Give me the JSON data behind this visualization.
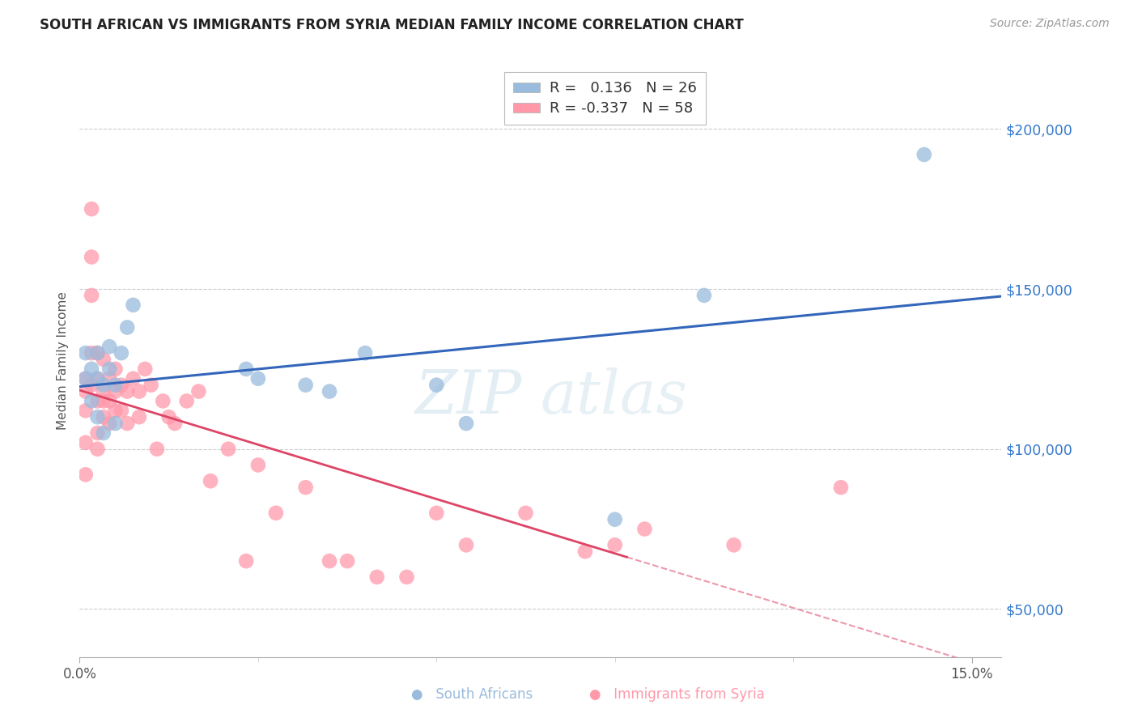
{
  "title": "SOUTH AFRICAN VS IMMIGRANTS FROM SYRIA MEDIAN FAMILY INCOME CORRELATION CHART",
  "source": "Source: ZipAtlas.com",
  "ylabel": "Median Family Income",
  "yticks": [
    50000,
    100000,
    150000,
    200000
  ],
  "ytick_labels": [
    "$50,000",
    "$100,000",
    "$150,000",
    "$200,000"
  ],
  "xlim": [
    0.0,
    0.155
  ],
  "ylim": [
    35000,
    220000
  ],
  "blue_color": "#99BBDD",
  "pink_color": "#FF99AA",
  "trendline_blue": "#3366BB",
  "trendline_pink": "#DD4466",
  "watermark_zip": "ZIP",
  "watermark_atlas": "atlas",
  "r_blue": "0.136",
  "n_blue": "26",
  "r_pink": "-0.337",
  "n_pink": "58",
  "south_african_x": [
    0.001,
    0.001,
    0.002,
    0.002,
    0.003,
    0.003,
    0.003,
    0.004,
    0.004,
    0.005,
    0.005,
    0.006,
    0.006,
    0.007,
    0.008,
    0.009,
    0.028,
    0.03,
    0.038,
    0.042,
    0.048,
    0.06,
    0.065,
    0.09,
    0.105,
    0.142
  ],
  "south_african_y": [
    122000,
    130000,
    125000,
    115000,
    130000,
    122000,
    110000,
    120000,
    105000,
    132000,
    125000,
    120000,
    108000,
    130000,
    138000,
    145000,
    125000,
    122000,
    120000,
    118000,
    130000,
    120000,
    108000,
    78000,
    148000,
    192000
  ],
  "syria_x": [
    0.001,
    0.001,
    0.001,
    0.001,
    0.002,
    0.002,
    0.002,
    0.002,
    0.003,
    0.003,
    0.003,
    0.003,
    0.004,
    0.004,
    0.004,
    0.005,
    0.005,
    0.005,
    0.006,
    0.006,
    0.006,
    0.007,
    0.007,
    0.008,
    0.008,
    0.009,
    0.01,
    0.01,
    0.011,
    0.012,
    0.013,
    0.014,
    0.015,
    0.016,
    0.018,
    0.02,
    0.022,
    0.025,
    0.028,
    0.03,
    0.033,
    0.038,
    0.042,
    0.045,
    0.05,
    0.055,
    0.06,
    0.065,
    0.075,
    0.085,
    0.09,
    0.095,
    0.11,
    0.128,
    0.001,
    0.002,
    0.003,
    0.004
  ],
  "syria_y": [
    118000,
    112000,
    102000,
    92000,
    175000,
    160000,
    148000,
    120000,
    130000,
    122000,
    115000,
    105000,
    128000,
    118000,
    110000,
    122000,
    115000,
    108000,
    125000,
    118000,
    112000,
    120000,
    112000,
    118000,
    108000,
    122000,
    118000,
    110000,
    125000,
    120000,
    100000,
    115000,
    110000,
    108000,
    115000,
    118000,
    90000,
    100000,
    65000,
    95000,
    80000,
    88000,
    65000,
    65000,
    60000,
    60000,
    80000,
    70000,
    80000,
    68000,
    70000,
    75000,
    70000,
    88000,
    122000,
    130000,
    100000,
    115000
  ]
}
